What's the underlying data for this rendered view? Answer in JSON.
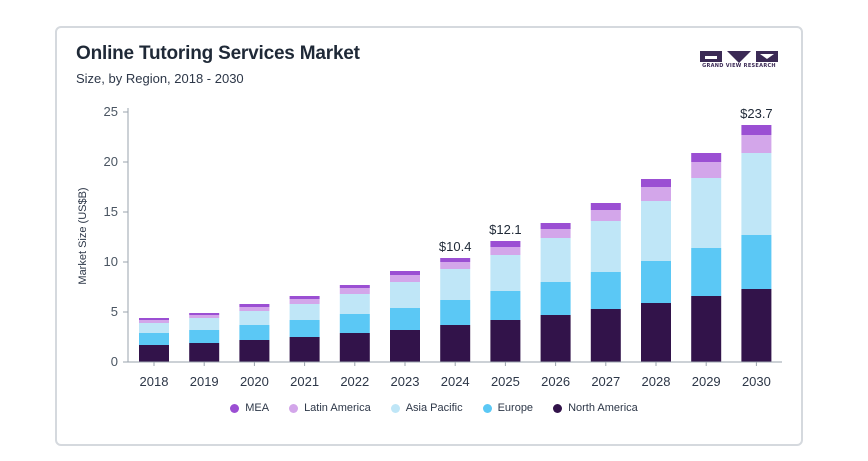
{
  "header": {
    "title": "Online Tutoring Services Market",
    "subtitle": "Size, by Region, 2018 - 2030",
    "logo_text": "GRAND VIEW RESEARCH"
  },
  "colors": {
    "north_america": "#32134a",
    "europe": "#5bc8f5",
    "asia_pacific": "#bfe6f7",
    "latin_america": "#d3a6ea",
    "mea": "#9b4fd3",
    "logo": "#3b2a55"
  },
  "chart_data": {
    "type": "bar",
    "stacked": true,
    "title": "Online Tutoring Services Market",
    "subtitle": "Size, by Region, 2018 - 2030",
    "xlabel": "",
    "ylabel": "Market Size (US$B)",
    "ylim": [
      0,
      25
    ],
    "yticks": [
      "0",
      "5",
      "10",
      "15",
      "20",
      "25"
    ],
    "grid": false,
    "legend_position": "bottom",
    "categories": [
      "2018",
      "2019",
      "2020",
      "2021",
      "2022",
      "2023",
      "2024",
      "2025",
      "2026",
      "2027",
      "2028",
      "2029",
      "2030"
    ],
    "series": [
      {
        "name": "North America",
        "color": "#32134a",
        "values": [
          1.7,
          1.9,
          2.2,
          2.5,
          2.9,
          3.2,
          3.7,
          4.2,
          4.7,
          5.3,
          5.9,
          6.6,
          7.3
        ]
      },
      {
        "name": "Europe",
        "color": "#5bc8f5",
        "values": [
          1.2,
          1.3,
          1.5,
          1.7,
          1.9,
          2.2,
          2.5,
          2.9,
          3.3,
          3.7,
          4.2,
          4.8,
          5.4
        ]
      },
      {
        "name": "Asia Pacific",
        "color": "#bfe6f7",
        "values": [
          1.0,
          1.2,
          1.4,
          1.6,
          2.0,
          2.6,
          3.1,
          3.6,
          4.4,
          5.1,
          6.0,
          7.0,
          8.2
        ]
      },
      {
        "name": "Latin America",
        "color": "#d3a6ea",
        "values": [
          0.3,
          0.3,
          0.4,
          0.5,
          0.6,
          0.7,
          0.7,
          0.8,
          0.9,
          1.1,
          1.4,
          1.6,
          1.8
        ]
      },
      {
        "name": "MEA",
        "color": "#9b4fd3",
        "values": [
          0.2,
          0.2,
          0.3,
          0.3,
          0.3,
          0.4,
          0.4,
          0.6,
          0.6,
          0.7,
          0.8,
          0.9,
          1.0
        ]
      }
    ],
    "annotations": [
      {
        "category": "2024",
        "label": "$10.4",
        "value": 10.4
      },
      {
        "category": "2025",
        "label": "$12.1",
        "value": 12.1
      },
      {
        "category": "2030",
        "label": "$23.7",
        "value": 23.7
      }
    ],
    "legend_order": [
      "MEA",
      "Latin America",
      "Asia Pacific",
      "Europe",
      "North America"
    ]
  }
}
